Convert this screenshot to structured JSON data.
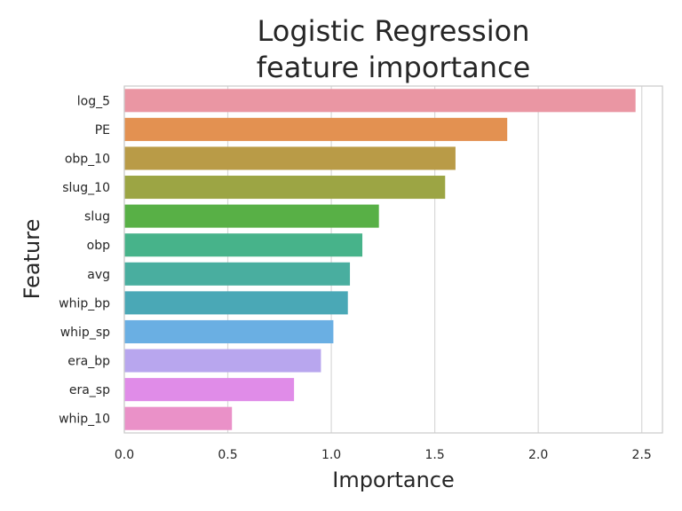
{
  "chart_data": {
    "type": "bar",
    "orientation": "horizontal",
    "title": [
      "Logistic Regression",
      "feature importance"
    ],
    "xlabel": "Importance",
    "ylabel": "Feature",
    "xlim": [
      0,
      2.6
    ],
    "xticks": [
      "0.0",
      "0.5",
      "1.0",
      "1.5",
      "2.0",
      "2.5"
    ],
    "grid": true,
    "categories": [
      "log_5",
      "PE",
      "obp_10",
      "slug_10",
      "slug",
      "obp",
      "avg",
      "whip_bp",
      "whip_sp",
      "era_bp",
      "era_sp",
      "whip_10"
    ],
    "values": [
      2.47,
      1.85,
      1.6,
      1.55,
      1.23,
      1.15,
      1.09,
      1.08,
      1.01,
      0.95,
      0.82,
      0.52
    ],
    "colors": [
      "#ea96a3",
      "#e39151",
      "#b99b47",
      "#9ca544",
      "#58b046",
      "#47b38a",
      "#49ae9f",
      "#4aa8b6",
      "#6aafe3",
      "#b8a6ee",
      "#e08ce8",
      "#ea91c8"
    ]
  }
}
